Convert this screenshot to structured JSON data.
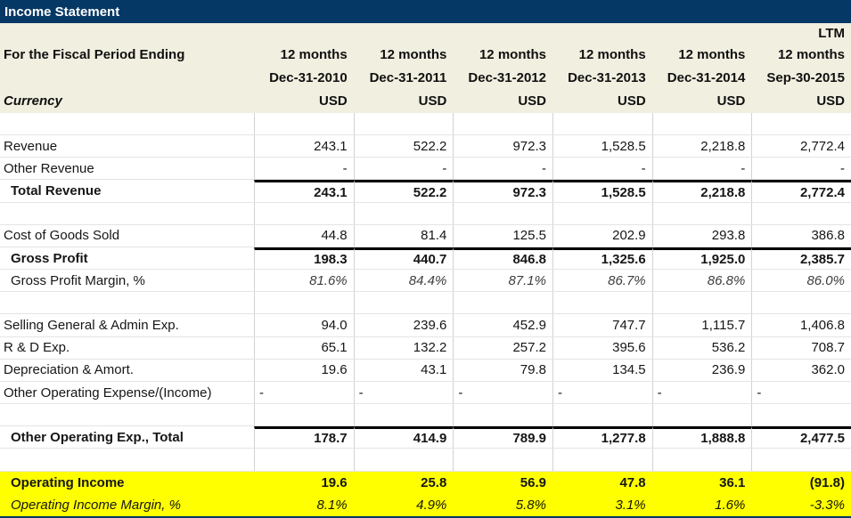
{
  "title": "Income Statement",
  "colors": {
    "navy": "#053864",
    "cream": "#F0EFE0",
    "highlight": "#FFFF00",
    "grid_vertical": "#D2D2D2",
    "grid_horizontal": "#E4E4E4",
    "thick_border": "#000000"
  },
  "header": {
    "fiscal_period_label": "For the Fiscal Period Ending",
    "currency_label": "Currency",
    "ltm_label": "LTM",
    "columns": [
      {
        "period": "12 months",
        "date": "Dec-31-2010",
        "currency": "USD"
      },
      {
        "period": "12 months",
        "date": "Dec-31-2011",
        "currency": "USD"
      },
      {
        "period": "12 months",
        "date": "Dec-31-2012",
        "currency": "USD"
      },
      {
        "period": "12 months",
        "date": "Dec-31-2013",
        "currency": "USD"
      },
      {
        "period": "12 months",
        "date": "Dec-31-2014",
        "currency": "USD"
      },
      {
        "period": "12 months",
        "date": "Sep-30-2015",
        "currency": "USD"
      }
    ]
  },
  "rows": [
    {
      "label": "",
      "values": [
        "",
        "",
        "",
        "",
        "",
        ""
      ]
    },
    {
      "label": "Revenue",
      "values": [
        "243.1",
        "522.2",
        "972.3",
        "1,528.5",
        "2,218.8",
        "2,772.4"
      ]
    },
    {
      "label": "Other Revenue",
      "values": [
        "-",
        "-",
        "-",
        "-",
        "-",
        "-"
      ]
    },
    {
      "label": "Total Revenue",
      "bold": true,
      "indent": true,
      "thick_top": true,
      "values": [
        "243.1",
        "522.2",
        "972.3",
        "1,528.5",
        "2,218.8",
        "2,772.4"
      ]
    },
    {
      "label": "",
      "values": [
        "",
        "",
        "",
        "",
        "",
        ""
      ]
    },
    {
      "label": "Cost of Goods Sold",
      "values": [
        "44.8",
        "81.4",
        "125.5",
        "202.9",
        "293.8",
        "386.8"
      ]
    },
    {
      "label": "Gross Profit",
      "bold": true,
      "indent": true,
      "thick_top": true,
      "values": [
        "198.3",
        "440.7",
        "846.8",
        "1,325.6",
        "1,925.0",
        "2,385.7"
      ]
    },
    {
      "label": "Gross Profit Margin, %",
      "indent": true,
      "italic_values": true,
      "values": [
        "81.6%",
        "84.4%",
        "87.1%",
        "86.7%",
        "86.8%",
        "86.0%"
      ]
    },
    {
      "label": "",
      "values": [
        "",
        "",
        "",
        "",
        "",
        ""
      ]
    },
    {
      "label": "Selling General & Admin Exp.",
      "values": [
        "94.0",
        "239.6",
        "452.9",
        "747.7",
        "1,115.7",
        "1,406.8"
      ]
    },
    {
      "label": "R & D Exp.",
      "values": [
        "65.1",
        "132.2",
        "257.2",
        "395.6",
        "536.2",
        "708.7"
      ]
    },
    {
      "label": "Depreciation & Amort.",
      "values": [
        "19.6",
        "43.1",
        "79.8",
        "134.5",
        "236.9",
        "362.0"
      ]
    },
    {
      "label": "Other Operating Expense/(Income)",
      "dash_left": true,
      "values": [
        "-",
        "-",
        "-",
        "-",
        "-",
        "-"
      ]
    },
    {
      "label": "",
      "values": [
        "",
        "",
        "",
        "",
        "",
        ""
      ]
    },
    {
      "label": "Other Operating Exp., Total",
      "bold": true,
      "indent": true,
      "thick_top": true,
      "values": [
        "178.7",
        "414.9",
        "789.9",
        "1,277.8",
        "1,888.8",
        "2,477.5"
      ]
    },
    {
      "label": "",
      "values": [
        "",
        "",
        "",
        "",
        "",
        ""
      ]
    },
    {
      "label": "Operating Income",
      "bold": true,
      "indent": true,
      "highlight": true,
      "values": [
        "19.6",
        "25.8",
        "56.9",
        "47.8",
        "36.1",
        "(91.8)"
      ]
    },
    {
      "label": "Operating Income Margin, %",
      "indent": true,
      "highlight": true,
      "italic_label": true,
      "italic_values": true,
      "values": [
        "8.1%",
        "4.9%",
        "5.8%",
        "3.1%",
        "1.6%",
        "-3.3%"
      ]
    }
  ]
}
